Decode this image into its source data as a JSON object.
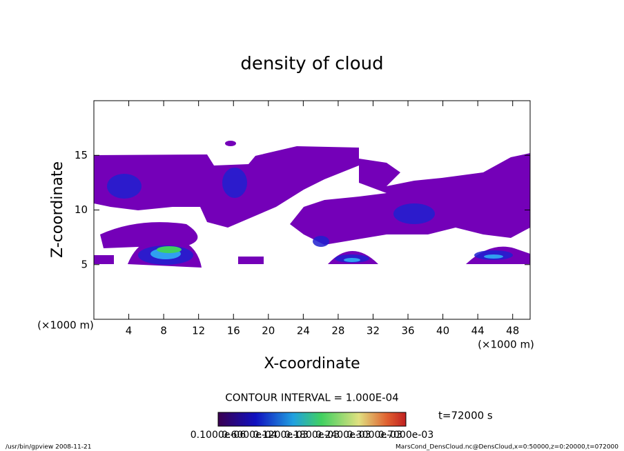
{
  "chart_data": {
    "type": "contour",
    "title": "density of cloud",
    "x_label": "X-coordinate",
    "y_label": "Z-coordinate",
    "x_unit": "(×1000 m)",
    "y_unit": "(×1000 m)",
    "xlim": [
      0,
      50
    ],
    "ylim": [
      0,
      20
    ],
    "xticks": [
      4,
      8,
      12,
      16,
      20,
      24,
      28,
      32,
      36,
      40,
      44,
      48
    ],
    "yticks": [
      5,
      10,
      15
    ],
    "contour_interval": "CONTOUR INTERVAL = 1.000E-04",
    "time": "t=72000 s",
    "colorbar_labels": [
      "0.1000e-06",
      "0.6000e-04",
      "0.1200e-03",
      "0.1800e-03",
      "0.2400e-03",
      "0.3000e-03",
      "0.7000e-03"
    ],
    "footer_left": "/usr/bin/gpview  2008-11-21",
    "footer_right": "MarsCond_DensCloud.nc@DensCloud,x=0:50000,z=0:20000,t=072000"
  }
}
